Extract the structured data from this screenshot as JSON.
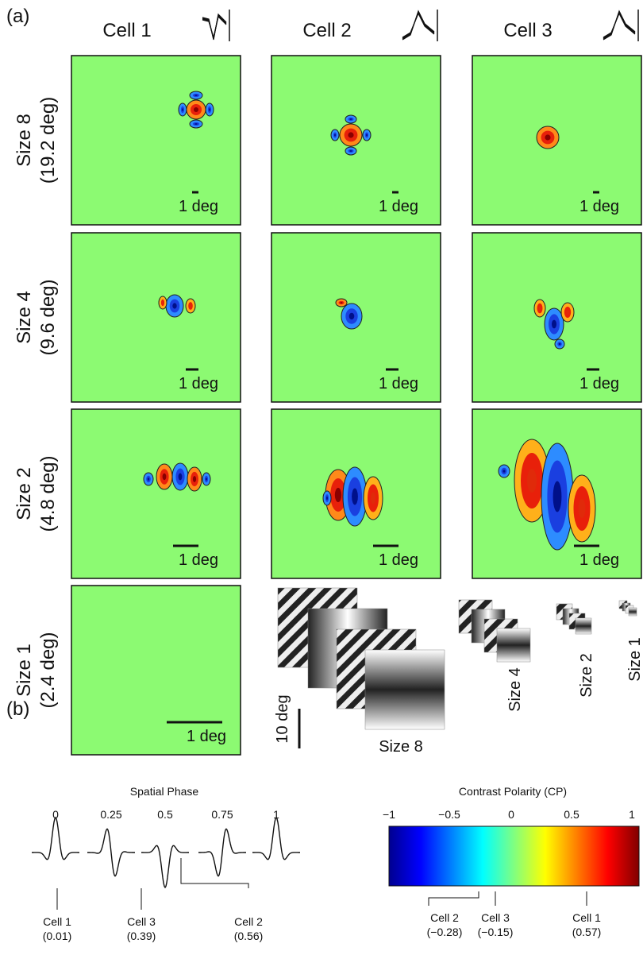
{
  "panel_a": {
    "label": "(a)",
    "columns": [
      "Cell 1",
      "Cell 2",
      "Cell 3"
    ],
    "rows": [
      {
        "label": "Size 8",
        "sublabel": "(19.2 deg)"
      },
      {
        "label": "Size 4",
        "sublabel": "(9.6 deg)"
      },
      {
        "label": "Size 2",
        "sublabel": "(4.8 deg)"
      },
      {
        "label": "Size 1",
        "sublabel": "(2.4 deg)"
      }
    ],
    "scale_label": "1 deg",
    "stimulus": {
      "scale_label": "10 deg",
      "sizes": [
        "Size 8",
        "Size 4",
        "Size 2",
        "Size 1"
      ]
    }
  },
  "panel_b": {
    "label": "(b)",
    "phase": {
      "title": "Spatial Phase",
      "ticks": [
        "0",
        "0.25",
        "0.5",
        "0.75",
        "1"
      ],
      "cells": [
        {
          "name": "Cell 1",
          "value": "(0.01)"
        },
        {
          "name": "Cell 3",
          "value": "(0.39)"
        },
        {
          "name": "Cell 2",
          "value": "(0.56)"
        }
      ]
    },
    "polarity": {
      "title": "Contrast Polarity (CP)",
      "ticks": [
        "−1",
        "−0.5",
        "0",
        "0.5",
        "1"
      ],
      "cells": [
        {
          "name": "Cell 2",
          "value": "(−0.28)"
        },
        {
          "name": "Cell 3",
          "value": "(−0.15)"
        },
        {
          "name": "Cell 1",
          "value": "(0.57)"
        }
      ]
    }
  }
}
